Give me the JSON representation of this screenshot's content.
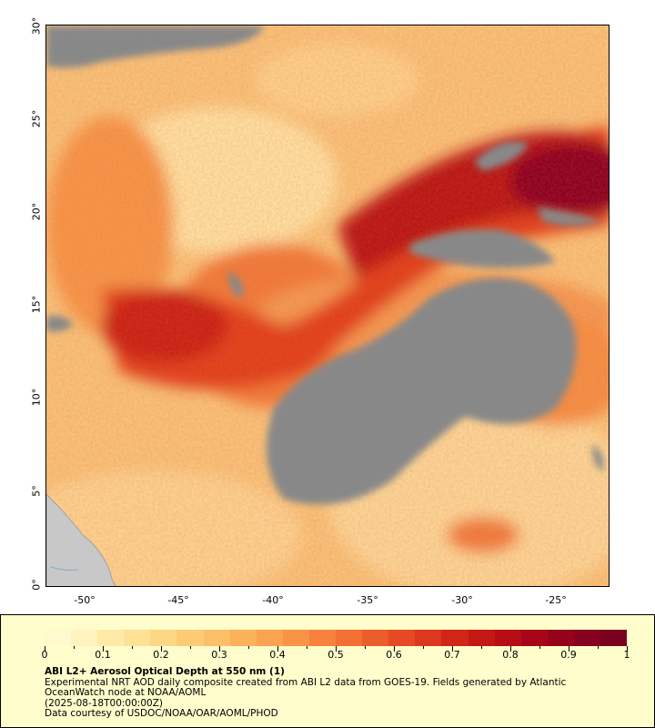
{
  "map": {
    "lat_labels": [
      "30°",
      "25°",
      "20°",
      "15°",
      "10°",
      "5°",
      "0°"
    ],
    "lon_labels": [
      "-50°",
      "-45°",
      "-40°",
      "-35°",
      "-30°",
      "-25°"
    ],
    "colors": {
      "no_data": "#888888",
      "land": "#c8c8c8",
      "low": "#fde9b0",
      "high": "#7f0020"
    }
  },
  "legend": {
    "tick_labels": [
      "0",
      "0.1",
      "0.2",
      "0.3",
      "0.4",
      "0.5",
      "0.6",
      "0.7",
      "0.8",
      "0.9",
      "1"
    ],
    "scale_colors": [
      "#fffacd",
      "#fff3bd",
      "#ffeaa8",
      "#ffe196",
      "#fed785",
      "#fdcb76",
      "#fdbf68",
      "#fcb15b",
      "#fba350",
      "#f99346",
      "#f6823d",
      "#f27034",
      "#ec5d2c",
      "#e54a25",
      "#dc371f",
      "#d12519",
      "#c51815",
      "#b70e15",
      "#a70618",
      "#96021c",
      "#860020",
      "#7a0020"
    ],
    "title": "ABI L2+ Aerosol Optical Depth at 550 nm (1)",
    "line1": "Experimental NRT AOD daily composite created from ABI L2 data from GOES-19. Fields generated by Atlantic",
    "line2": "OceanWatch node at NOAA/AOML",
    "line3": "(2025-08-18T00:00:00Z)",
    "line4": "Data courtesy of USDOC/NOAA/OAR/AOML/PHOD"
  }
}
